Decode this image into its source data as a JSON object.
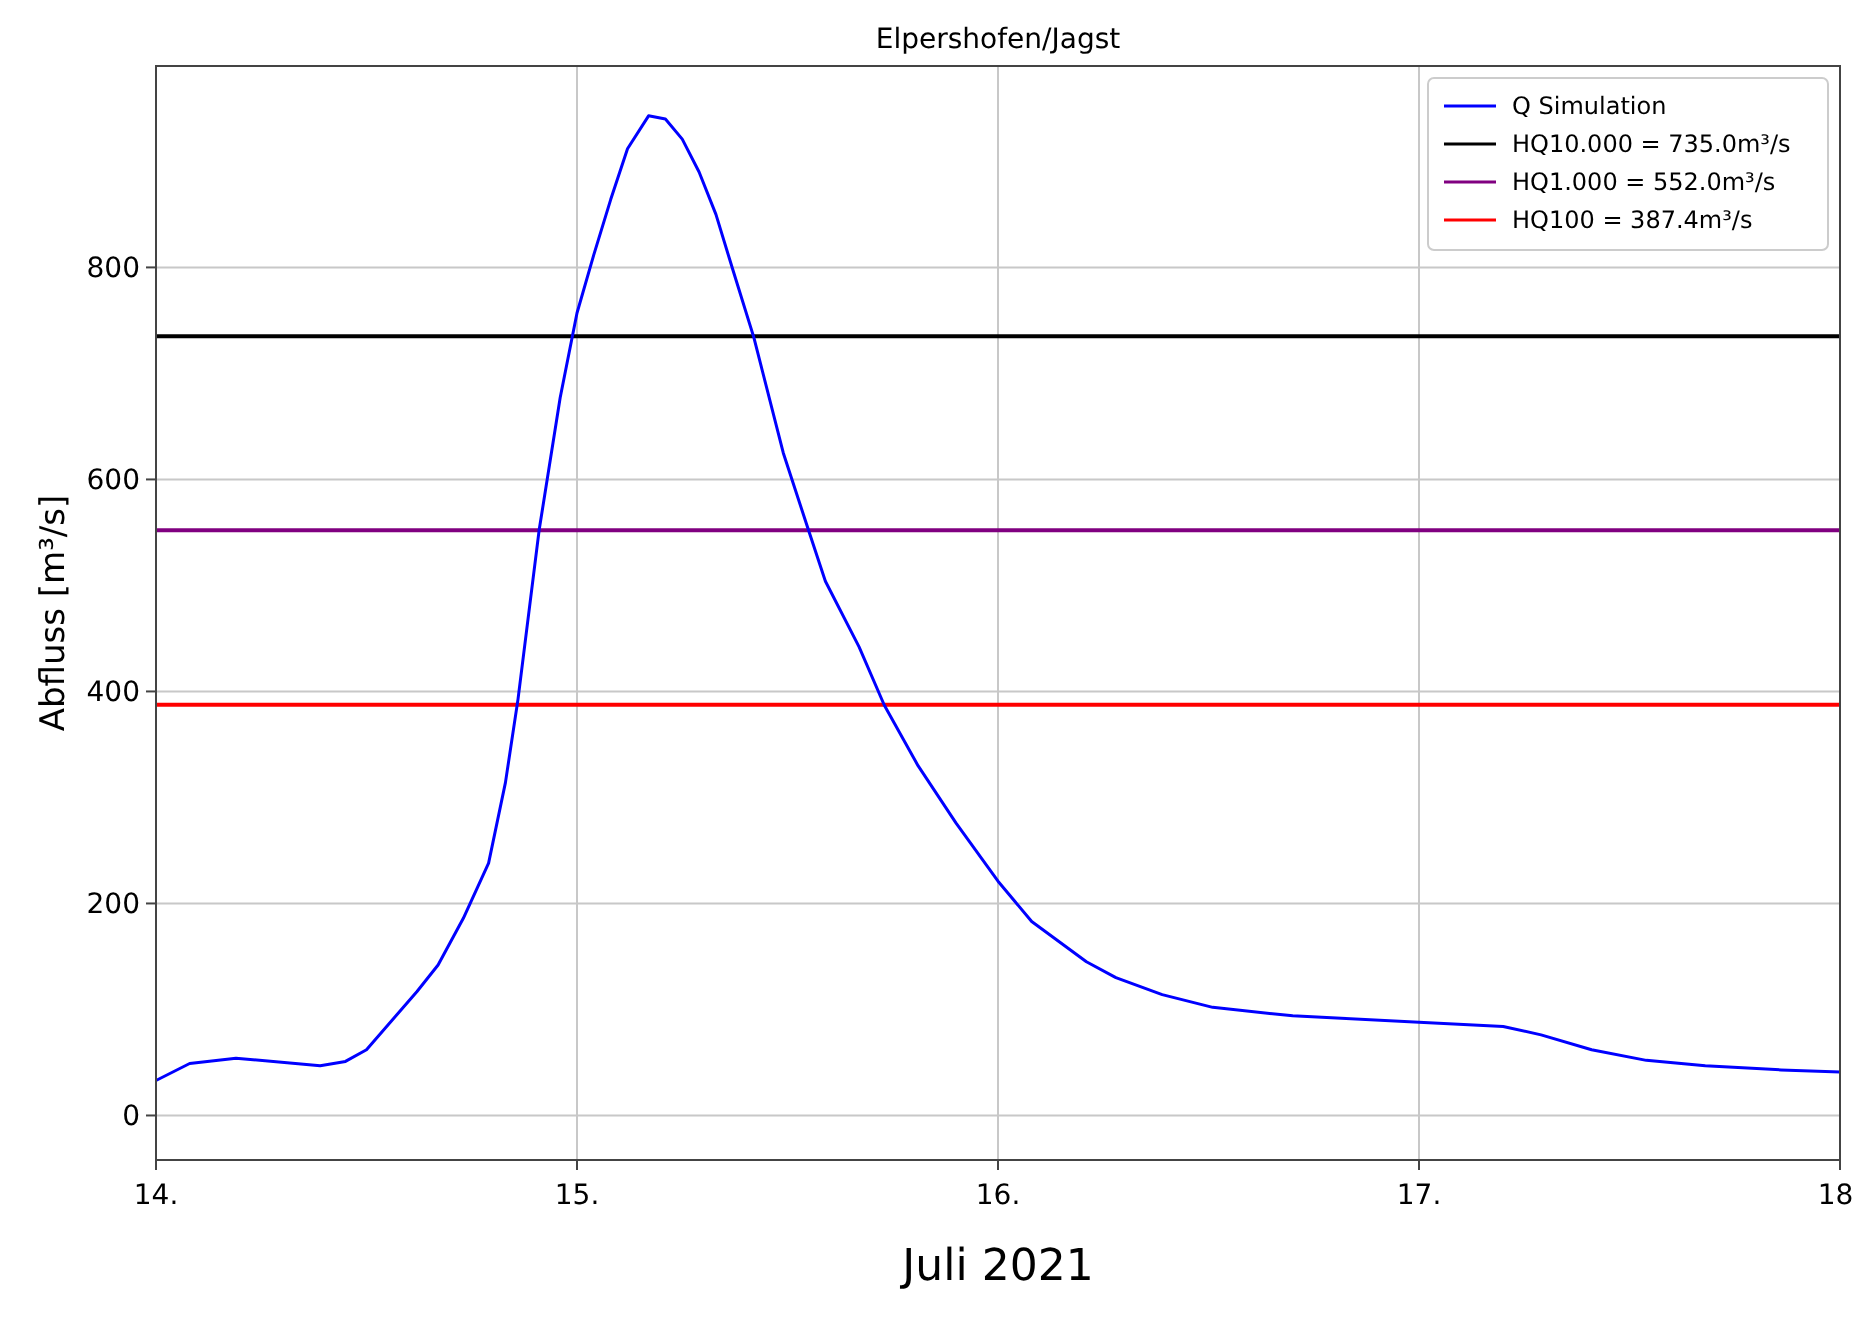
{
  "chart_data": {
    "type": "line",
    "title": "Elpershofen/Jagst",
    "xlabel": "Juli 2021",
    "ylabel": "Abfluss [m³/s]",
    "xlim": [
      14,
      18
    ],
    "xticks": [
      {
        "value": 14,
        "label": "14."
      },
      {
        "value": 15,
        "label": "15."
      },
      {
        "value": 16,
        "label": "16."
      },
      {
        "value": 17,
        "label": "17."
      },
      {
        "value": 18,
        "label": "18."
      }
    ],
    "ylim": [
      -42,
      990
    ],
    "yticks": [
      0,
      200,
      400,
      600,
      800
    ],
    "grid": true,
    "legend": "top right",
    "series": [
      {
        "name": "Q Simulation",
        "color": "#0000ff",
        "x": [
          14.0,
          14.08,
          14.19,
          14.39,
          14.45,
          14.5,
          14.62,
          14.67,
          14.73,
          14.79,
          14.83,
          14.86,
          14.91,
          14.96,
          15.0,
          15.04,
          15.08,
          15.12,
          15.17,
          15.21,
          15.25,
          15.29,
          15.33,
          15.37,
          15.42,
          15.49,
          15.55,
          15.59,
          15.67,
          15.73,
          15.81,
          15.9,
          16.0,
          16.08,
          16.21,
          16.28,
          16.39,
          16.51,
          16.7,
          17.0,
          17.2,
          17.29,
          17.41,
          17.54,
          17.68,
          17.86,
          18.0
        ],
        "values": [
          33,
          49,
          54,
          47,
          51,
          62,
          117,
          142,
          186,
          238,
          314,
          393,
          552,
          677,
          757,
          812,
          864,
          912,
          943,
          940,
          921,
          890,
          850,
          798,
          734,
          625,
          552,
          504,
          442,
          387,
          330,
          276,
          221,
          183,
          145,
          130,
          114,
          102,
          94,
          88,
          84,
          76,
          62,
          52,
          47,
          43,
          41
        ]
      }
    ],
    "ref_lines": [
      {
        "axis": "y",
        "value": 735.0,
        "label": "HQ10.000 = 735.0m³/s",
        "color": "#000000"
      },
      {
        "axis": "y",
        "value": 552.0,
        "label": "HQ1.000 = 552.0m³/s",
        "color": "#800080"
      },
      {
        "axis": "y",
        "value": 387.4,
        "label": "HQ100 = 387.4m³/s",
        "color": "#ff0000"
      }
    ]
  }
}
